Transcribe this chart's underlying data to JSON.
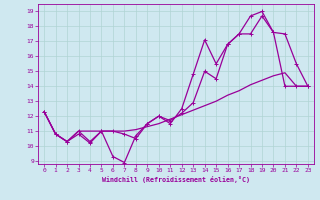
{
  "xlabel": "Windchill (Refroidissement éolien,°C)",
  "background_color": "#cfe8f0",
  "grid_color": "#b0d4d4",
  "line_color": "#990099",
  "xlim": [
    -0.5,
    23.5
  ],
  "ylim": [
    8.8,
    19.5
  ],
  "yticks": [
    9,
    10,
    11,
    12,
    13,
    14,
    15,
    16,
    17,
    18,
    19
  ],
  "xticks": [
    0,
    1,
    2,
    3,
    4,
    5,
    6,
    7,
    8,
    9,
    10,
    11,
    12,
    13,
    14,
    15,
    16,
    17,
    18,
    19,
    20,
    21,
    22,
    23
  ],
  "line1_x": [
    0,
    1,
    2,
    3,
    4,
    5,
    6,
    7,
    8,
    9,
    10,
    11,
    12,
    13,
    14,
    15,
    16,
    17,
    18,
    19,
    20,
    21,
    22,
    23
  ],
  "line1_y": [
    12.3,
    10.8,
    10.3,
    10.8,
    10.2,
    11.0,
    9.3,
    8.9,
    10.7,
    11.5,
    12.0,
    11.5,
    12.5,
    14.8,
    17.1,
    15.5,
    16.8,
    17.5,
    18.7,
    19.0,
    17.6,
    17.5,
    15.5,
    14.0
  ],
  "line2_x": [
    0,
    1,
    2,
    3,
    4,
    5,
    6,
    7,
    8,
    9,
    10,
    11,
    12,
    13,
    14,
    15,
    16,
    17,
    18,
    19,
    20,
    21,
    22,
    23
  ],
  "line2_y": [
    12.3,
    10.8,
    10.3,
    11.0,
    10.3,
    11.0,
    11.0,
    10.8,
    10.5,
    11.5,
    12.0,
    11.7,
    12.2,
    12.9,
    15.0,
    14.5,
    16.8,
    17.5,
    17.5,
    18.7,
    17.6,
    14.0,
    14.0,
    14.0
  ],
  "line3_x": [
    0,
    1,
    2,
    3,
    4,
    5,
    6,
    7,
    8,
    9,
    10,
    11,
    12,
    13,
    14,
    15,
    16,
    17,
    18,
    19,
    20,
    21,
    22,
    23
  ],
  "line3_y": [
    12.3,
    10.8,
    10.3,
    11.0,
    11.0,
    11.0,
    11.0,
    11.0,
    11.1,
    11.3,
    11.5,
    11.8,
    12.1,
    12.4,
    12.7,
    13.0,
    13.4,
    13.7,
    14.1,
    14.4,
    14.7,
    14.9,
    14.0,
    14.0
  ]
}
